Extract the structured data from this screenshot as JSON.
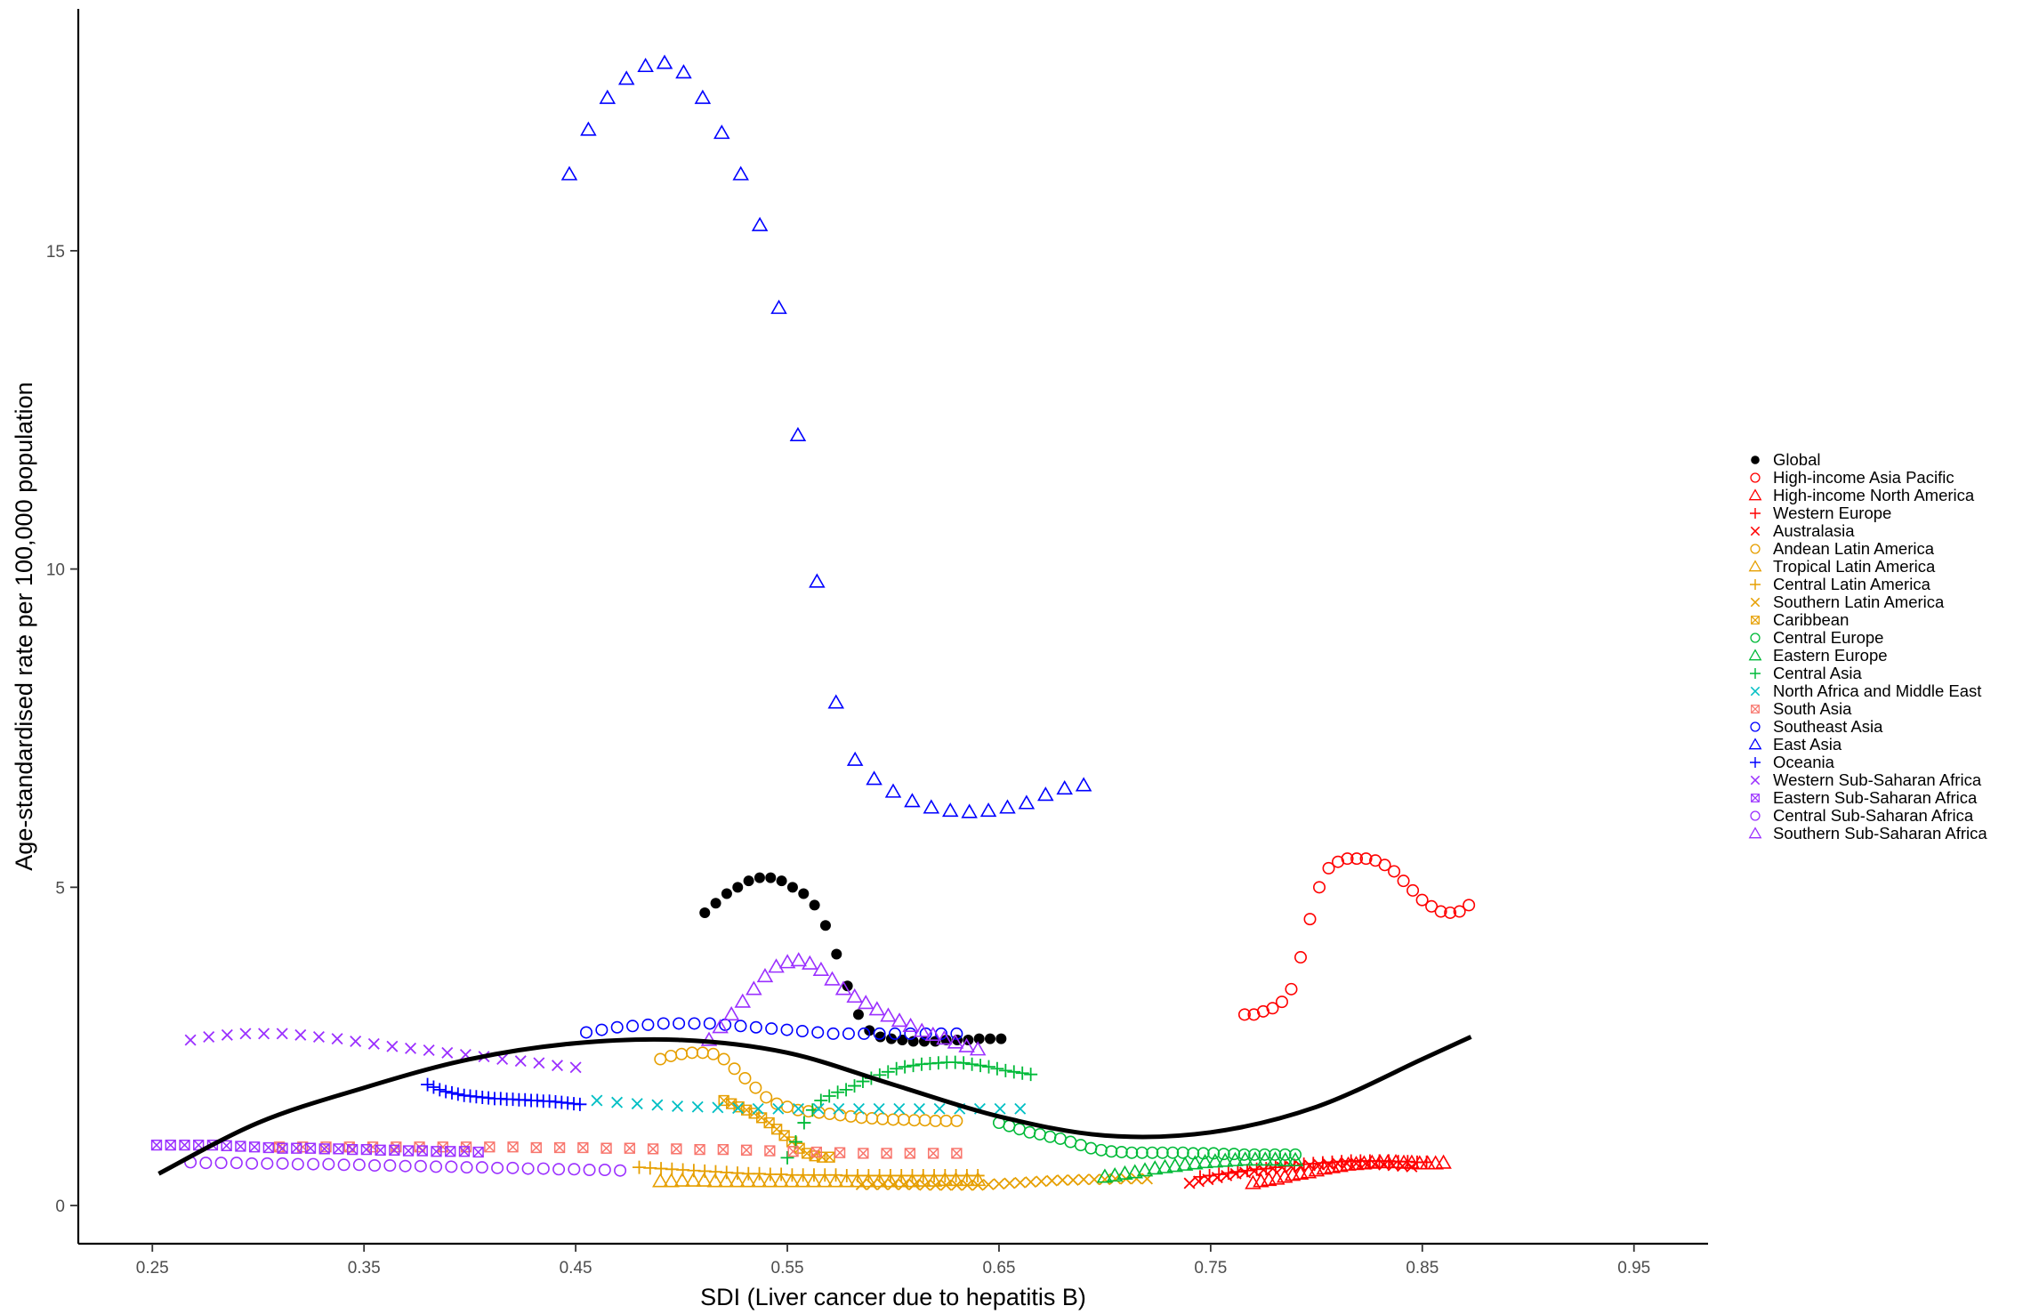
{
  "chart_data": {
    "type": "scatter",
    "xlabel": "SDI (Liver cancer due to hepatitis B)",
    "ylabel": "Age-standardised rate per 100,000 population",
    "xlim": [
      0.215,
      0.985
    ],
    "ylim": [
      -0.6,
      18.8
    ],
    "x_ticks": [
      "0.25",
      "0.35",
      "0.45",
      "0.55",
      "0.65",
      "0.75",
      "0.85",
      "0.95"
    ],
    "y_ticks": [
      "0",
      "5",
      "10",
      "15"
    ],
    "grid": false,
    "legend_position": "right",
    "series": [
      {
        "name": "Global",
        "color": "#000000",
        "marker": "filled-circle",
        "x_start": 0.511,
        "x_end": 0.651,
        "y": [
          4.6,
          4.75,
          4.9,
          5.0,
          5.1,
          5.15,
          5.15,
          5.1,
          5.0,
          4.9,
          4.72,
          4.4,
          3.95,
          3.45,
          3.0,
          2.75,
          2.65,
          2.62,
          2.6,
          2.58,
          2.58,
          2.58,
          2.6,
          2.6,
          2.6,
          2.62,
          2.62,
          2.62
        ]
      },
      {
        "name": "High-income Asia Pacific",
        "color": "#ff0000",
        "marker": "open-circle",
        "x_start": 0.766,
        "x_end": 0.872,
        "y": [
          3.0,
          3.0,
          3.05,
          3.1,
          3.2,
          3.4,
          3.9,
          4.5,
          5.0,
          5.3,
          5.4,
          5.45,
          5.45,
          5.45,
          5.42,
          5.35,
          5.25,
          5.1,
          4.95,
          4.8,
          4.7,
          4.62,
          4.6,
          4.62,
          4.72
        ]
      },
      {
        "name": "High-income North America",
        "color": "#ff0000",
        "marker": "open-triangle",
        "x_start": 0.77,
        "x_end": 0.86,
        "y": [
          0.35,
          0.38,
          0.4,
          0.42,
          0.45,
          0.48,
          0.5,
          0.52,
          0.55,
          0.58,
          0.6,
          0.62,
          0.64,
          0.65,
          0.66,
          0.67,
          0.68,
          0.68,
          0.68,
          0.67,
          0.67,
          0.66,
          0.66,
          0.66,
          0.67
        ]
      },
      {
        "name": "Western Europe",
        "color": "#ff0000",
        "marker": "plus",
        "x_start": 0.745,
        "x_end": 0.852,
        "y": [
          0.45,
          0.47,
          0.49,
          0.51,
          0.53,
          0.55,
          0.57,
          0.58,
          0.6,
          0.62,
          0.63,
          0.65,
          0.66,
          0.67,
          0.68,
          0.69,
          0.7,
          0.7,
          0.7,
          0.7,
          0.7,
          0.69,
          0.69,
          0.68,
          0.68
        ]
      },
      {
        "name": "Australasia",
        "color": "#ff0000",
        "marker": "cross",
        "x_start": 0.74,
        "x_end": 0.845,
        "y": [
          0.35,
          0.38,
          0.41,
          0.44,
          0.47,
          0.5,
          0.52,
          0.54,
          0.56,
          0.58,
          0.6,
          0.61,
          0.62,
          0.63,
          0.64,
          0.65,
          0.66,
          0.66,
          0.66,
          0.66,
          0.65,
          0.64,
          0.63,
          0.62,
          0.61
        ]
      },
      {
        "name": "Andean Latin America",
        "color": "#e69f00",
        "marker": "open-circle",
        "x_start": 0.49,
        "x_end": 0.63,
        "y": [
          2.3,
          2.35,
          2.38,
          2.4,
          2.4,
          2.38,
          2.3,
          2.15,
          2.0,
          1.85,
          1.7,
          1.6,
          1.55,
          1.5,
          1.48,
          1.46,
          1.44,
          1.42,
          1.4,
          1.38,
          1.37,
          1.36,
          1.35,
          1.35,
          1.34,
          1.34,
          1.33,
          1.33,
          1.33
        ]
      },
      {
        "name": "Tropical Latin America",
        "color": "#e69f00",
        "marker": "open-triangle",
        "x_start": 0.49,
        "x_end": 0.64,
        "y": [
          0.38,
          0.38,
          0.39,
          0.39,
          0.39,
          0.38,
          0.38,
          0.38,
          0.38,
          0.38,
          0.38,
          0.38,
          0.38,
          0.38,
          0.38,
          0.38,
          0.38,
          0.38,
          0.38,
          0.38,
          0.38,
          0.38,
          0.38,
          0.38,
          0.39,
          0.39,
          0.4,
          0.4,
          0.4,
          0.4
        ]
      },
      {
        "name": "Central Latin America",
        "color": "#e69f00",
        "marker": "plus",
        "x_start": 0.48,
        "x_end": 0.64,
        "y": [
          0.6,
          0.59,
          0.58,
          0.57,
          0.56,
          0.55,
          0.54,
          0.53,
          0.52,
          0.51,
          0.5,
          0.5,
          0.49,
          0.49,
          0.48,
          0.48,
          0.48,
          0.48,
          0.48,
          0.47,
          0.47,
          0.47,
          0.47,
          0.47,
          0.47,
          0.47,
          0.47,
          0.47,
          0.47,
          0.47,
          0.47,
          0.47
        ]
      },
      {
        "name": "Southern Latin America",
        "color": "#e69f00",
        "marker": "cross",
        "x_start": 0.585,
        "x_end": 0.72,
        "y": [
          0.33,
          0.33,
          0.33,
          0.33,
          0.33,
          0.33,
          0.32,
          0.32,
          0.32,
          0.32,
          0.32,
          0.32,
          0.33,
          0.34,
          0.35,
          0.36,
          0.37,
          0.38,
          0.39,
          0.4,
          0.4,
          0.41,
          0.41,
          0.41,
          0.42,
          0.42,
          0.42,
          0.42
        ]
      },
      {
        "name": "Caribbean",
        "color": "#e69f00",
        "marker": "boxed-cross",
        "x_start": 0.52,
        "x_end": 0.57,
        "y": [
          1.65,
          1.6,
          1.55,
          1.5,
          1.45,
          1.38,
          1.3,
          1.2,
          1.1,
          1.0,
          0.9,
          0.82,
          0.78,
          0.76,
          0.76
        ]
      },
      {
        "name": "Central Europe",
        "color": "#00ba38",
        "marker": "open-circle",
        "x_start": 0.65,
        "x_end": 0.79,
        "y": [
          1.3,
          1.25,
          1.2,
          1.15,
          1.12,
          1.08,
          1.05,
          1.0,
          0.95,
          0.9,
          0.87,
          0.85,
          0.84,
          0.83,
          0.83,
          0.83,
          0.83,
          0.83,
          0.83,
          0.82,
          0.82,
          0.82,
          0.81,
          0.81,
          0.8,
          0.8,
          0.8,
          0.8,
          0.8,
          0.8
        ]
      },
      {
        "name": "Eastern Europe",
        "color": "#00ba38",
        "marker": "open-triangle",
        "x_start": 0.7,
        "x_end": 0.79,
        "y": [
          0.45,
          0.47,
          0.5,
          0.52,
          0.55,
          0.58,
          0.6,
          0.62,
          0.64,
          0.66,
          0.68,
          0.69,
          0.7,
          0.71,
          0.72,
          0.72,
          0.72,
          0.72,
          0.71,
          0.71
        ]
      },
      {
        "name": "Central Asia",
        "color": "#00ba38",
        "marker": "plus",
        "x_start": 0.55,
        "x_end": 0.665,
        "y": [
          0.75,
          1.0,
          1.3,
          1.5,
          1.65,
          1.72,
          1.78,
          1.82,
          1.88,
          1.95,
          2.0,
          2.05,
          2.1,
          2.15,
          2.18,
          2.2,
          2.22,
          2.23,
          2.24,
          2.25,
          2.25,
          2.24,
          2.22,
          2.2,
          2.18,
          2.15,
          2.12,
          2.1,
          2.08,
          2.06
        ]
      },
      {
        "name": "North Africa and Middle East",
        "color": "#00bfc4",
        "marker": "cross",
        "x_start": 0.46,
        "x_end": 0.66,
        "y": [
          1.65,
          1.62,
          1.6,
          1.58,
          1.56,
          1.55,
          1.54,
          1.53,
          1.52,
          1.52,
          1.52,
          1.52,
          1.52,
          1.52,
          1.52,
          1.52,
          1.52,
          1.52,
          1.52,
          1.52,
          1.52,
          1.52
        ]
      },
      {
        "name": "South Asia",
        "color": "#f8766d",
        "marker": "boxed-cross",
        "x_start": 0.31,
        "x_end": 0.63,
        "y": [
          0.92,
          0.92,
          0.92,
          0.92,
          0.92,
          0.92,
          0.92,
          0.92,
          0.92,
          0.92,
          0.92,
          0.91,
          0.91,
          0.91,
          0.9,
          0.9,
          0.89,
          0.89,
          0.88,
          0.88,
          0.87,
          0.86,
          0.85,
          0.84,
          0.83,
          0.82,
          0.82,
          0.82,
          0.82,
          0.82
        ]
      },
      {
        "name": "Southeast Asia",
        "color": "#0000ff",
        "marker": "open-circle",
        "x_start": 0.455,
        "x_end": 0.63,
        "y": [
          2.72,
          2.76,
          2.8,
          2.82,
          2.84,
          2.86,
          2.86,
          2.86,
          2.86,
          2.84,
          2.82,
          2.8,
          2.78,
          2.76,
          2.74,
          2.72,
          2.7,
          2.7,
          2.7,
          2.7,
          2.7,
          2.7,
          2.7,
          2.7,
          2.7
        ]
      },
      {
        "name": "East Asia",
        "color": "#0000ff",
        "marker": "open-triangle",
        "x_start": 0.447,
        "x_end": 0.69,
        "y": [
          16.2,
          16.9,
          17.4,
          17.7,
          17.9,
          17.95,
          17.8,
          17.4,
          16.85,
          16.2,
          15.4,
          14.1,
          12.1,
          9.8,
          7.9,
          7.0,
          6.7,
          6.5,
          6.35,
          6.25,
          6.2,
          6.18,
          6.2,
          6.25,
          6.32,
          6.45,
          6.55,
          6.6
        ]
      },
      {
        "name": "Oceania",
        "color": "#0000ff",
        "marker": "plus",
        "x_start": 0.38,
        "x_end": 0.452,
        "y": [
          1.9,
          1.86,
          1.82,
          1.79,
          1.77,
          1.75,
          1.73,
          1.72,
          1.71,
          1.7,
          1.69,
          1.68,
          1.68,
          1.67,
          1.67,
          1.66,
          1.66,
          1.65,
          1.65,
          1.64,
          1.64,
          1.63,
          1.62,
          1.61,
          1.6,
          1.59
        ]
      },
      {
        "name": "Western Sub-Saharan Africa",
        "color": "#9b30ff",
        "marker": "cross",
        "x_start": 0.268,
        "x_end": 0.45,
        "y": [
          2.6,
          2.65,
          2.68,
          2.7,
          2.7,
          2.7,
          2.68,
          2.65,
          2.62,
          2.58,
          2.54,
          2.5,
          2.47,
          2.44,
          2.4,
          2.37,
          2.34,
          2.3,
          2.27,
          2.24,
          2.2,
          2.17
        ]
      },
      {
        "name": "Eastern Sub-Saharan Africa",
        "color": "#9b30ff",
        "marker": "boxed-cross",
        "x_start": 0.252,
        "x_end": 0.404,
        "y": [
          0.95,
          0.95,
          0.95,
          0.95,
          0.95,
          0.94,
          0.93,
          0.92,
          0.91,
          0.9,
          0.9,
          0.9,
          0.89,
          0.89,
          0.88,
          0.88,
          0.87,
          0.87,
          0.86,
          0.86,
          0.85,
          0.85,
          0.85,
          0.84
        ]
      },
      {
        "name": "Central Sub-Saharan Africa",
        "color": "#9b30ff",
        "marker": "open-circle",
        "x_start": 0.268,
        "x_end": 0.471,
        "y": [
          0.68,
          0.67,
          0.67,
          0.67,
          0.66,
          0.66,
          0.66,
          0.65,
          0.65,
          0.65,
          0.64,
          0.64,
          0.63,
          0.63,
          0.62,
          0.62,
          0.61,
          0.61,
          0.6,
          0.6,
          0.59,
          0.59,
          0.58,
          0.58,
          0.57,
          0.57,
          0.56,
          0.56,
          0.55
        ]
      },
      {
        "name": "Southern Sub-Saharan Africa",
        "color": "#9b30ff",
        "marker": "open-triangle",
        "x_start": 0.513,
        "x_end": 0.64,
        "y": [
          2.6,
          2.8,
          3.0,
          3.2,
          3.4,
          3.6,
          3.75,
          3.82,
          3.85,
          3.8,
          3.7,
          3.55,
          3.4,
          3.28,
          3.18,
          3.08,
          2.98,
          2.9,
          2.82,
          2.74,
          2.68,
          2.62,
          2.56,
          2.5,
          2.45
        ]
      }
    ],
    "trend": {
      "color": "#000000",
      "x": [
        0.253,
        0.3,
        0.35,
        0.4,
        0.45,
        0.5,
        0.55,
        0.6,
        0.65,
        0.7,
        0.75,
        0.8,
        0.85,
        0.873
      ],
      "y": [
        0.5,
        1.3,
        1.85,
        2.3,
        2.55,
        2.6,
        2.4,
        1.9,
        1.4,
        1.1,
        1.15,
        1.55,
        2.3,
        2.65
      ]
    }
  }
}
